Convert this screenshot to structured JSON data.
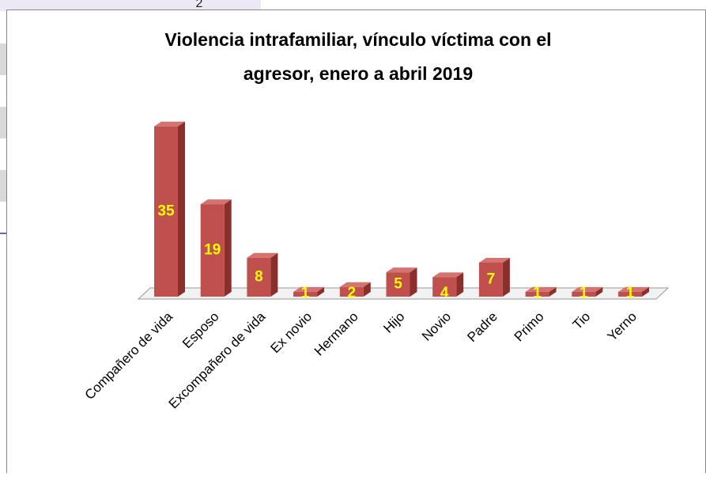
{
  "cell_text": "2",
  "chart_data": {
    "type": "bar3d",
    "title": [
      "Violencia intrafamiliar, vínculo víctima con el",
      "agresor, enero a abril 2019"
    ],
    "categories": [
      "Compañero de vida",
      "Esposo",
      "Excompañero de vida",
      "Ex novio",
      "Hermano",
      "Hijo",
      "Novio",
      "Padre",
      "Primo",
      "Tio",
      "Yerno"
    ],
    "values": [
      35,
      19,
      8,
      1,
      2,
      5,
      4,
      7,
      1,
      1,
      1
    ],
    "color": "#c0504d",
    "label_color": "#ffff00"
  }
}
